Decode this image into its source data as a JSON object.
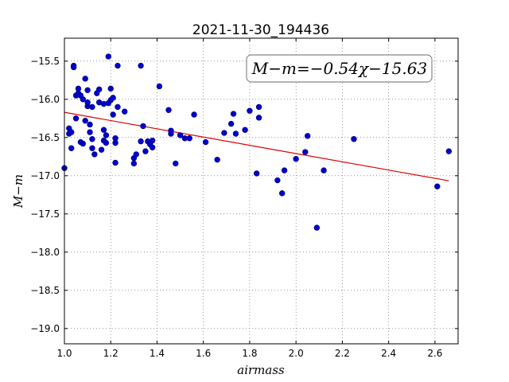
{
  "chart_data": {
    "type": "scatter",
    "title": "2021-11-30_194436",
    "xlabel": "airmass",
    "ylabel": "M−m",
    "xlim": [
      1.0,
      2.7
    ],
    "ylim": [
      -19.2,
      -15.2
    ],
    "y_inverted": true,
    "grid": true,
    "xticks": [
      1.0,
      1.2,
      1.4,
      1.6,
      1.8,
      2.0,
      2.2,
      2.4,
      2.6
    ],
    "xtick_labels": [
      "1.0",
      "1.2",
      "1.4",
      "1.6",
      "1.8",
      "2.0",
      "2.2",
      "2.4",
      "2.6"
    ],
    "yticks": [
      -15.5,
      -16.0,
      -16.5,
      -17.0,
      -17.5,
      -18.0,
      -18.5,
      -19.0
    ],
    "ytick_labels": [
      "−15.5",
      "−16.0",
      "−16.5",
      "−17.0",
      "−17.5",
      "−18.0",
      "−18.5",
      "−19.0"
    ],
    "annotation": "M−m=−0.54χ−15.63",
    "fit": {
      "slope": -0.54,
      "intercept": -15.63,
      "x_range": [
        1.0,
        2.66
      ]
    },
    "colors": {
      "points": "#0000cd",
      "fit": "#dd0000"
    },
    "points": [
      [
        1.0,
        -16.9
      ],
      [
        1.02,
        -16.38
      ],
      [
        1.02,
        -16.45
      ],
      [
        1.03,
        -16.64
      ],
      [
        1.03,
        -16.43
      ],
      [
        1.04,
        -15.56
      ],
      [
        1.04,
        -15.58
      ],
      [
        1.05,
        -16.25
      ],
      [
        1.05,
        -15.95
      ],
      [
        1.06,
        -15.92
      ],
      [
        1.06,
        -15.86
      ],
      [
        1.07,
        -15.95
      ],
      [
        1.07,
        -16.56
      ],
      [
        1.08,
        -16.58
      ],
      [
        1.08,
        -16.0
      ],
      [
        1.09,
        -16.28
      ],
      [
        1.09,
        -15.73
      ],
      [
        1.1,
        -16.09
      ],
      [
        1.1,
        -16.04
      ],
      [
        1.1,
        -15.88
      ],
      [
        1.11,
        -16.33
      ],
      [
        1.11,
        -16.43
      ],
      [
        1.12,
        -16.1
      ],
      [
        1.12,
        -16.64
      ],
      [
        1.12,
        -16.52
      ],
      [
        1.13,
        -16.72
      ],
      [
        1.14,
        -15.92
      ],
      [
        1.15,
        -16.04
      ],
      [
        1.15,
        -15.87
      ],
      [
        1.16,
        -16.66
      ],
      [
        1.17,
        -16.4
      ],
      [
        1.17,
        -16.06
      ],
      [
        1.17,
        -16.54
      ],
      [
        1.18,
        -16.57
      ],
      [
        1.18,
        -16.47
      ],
      [
        1.19,
        -16.05
      ],
      [
        1.19,
        -15.44
      ],
      [
        1.2,
        -16.01
      ],
      [
        1.2,
        -15.86
      ],
      [
        1.21,
        -16.2
      ],
      [
        1.21,
        -15.98
      ],
      [
        1.22,
        -16.51
      ],
      [
        1.22,
        -16.57
      ],
      [
        1.22,
        -16.83
      ],
      [
        1.23,
        -15.56
      ],
      [
        1.23,
        -16.1
      ],
      [
        1.26,
        -16.16
      ],
      [
        1.3,
        -16.77
      ],
      [
        1.3,
        -16.84
      ],
      [
        1.31,
        -16.72
      ],
      [
        1.33,
        -16.55
      ],
      [
        1.33,
        -15.56
      ],
      [
        1.34,
        -16.35
      ],
      [
        1.35,
        -16.68
      ],
      [
        1.36,
        -16.55
      ],
      [
        1.37,
        -16.59
      ],
      [
        1.38,
        -16.63
      ],
      [
        1.38,
        -16.54
      ],
      [
        1.41,
        -15.83
      ],
      [
        1.45,
        -16.14
      ],
      [
        1.46,
        -16.41
      ],
      [
        1.46,
        -16.45
      ],
      [
        1.48,
        -16.84
      ],
      [
        1.5,
        -16.47
      ],
      [
        1.52,
        -16.51
      ],
      [
        1.54,
        -16.51
      ],
      [
        1.56,
        -16.2
      ],
      [
        1.61,
        -16.56
      ],
      [
        1.66,
        -16.79
      ],
      [
        1.69,
        -16.44
      ],
      [
        1.72,
        -16.32
      ],
      [
        1.73,
        -16.19
      ],
      [
        1.74,
        -16.45
      ],
      [
        1.78,
        -16.4
      ],
      [
        1.8,
        -16.15
      ],
      [
        1.83,
        -16.97
      ],
      [
        1.84,
        -16.1
      ],
      [
        1.84,
        -16.24
      ],
      [
        1.92,
        -17.06
      ],
      [
        1.94,
        -17.23
      ],
      [
        1.95,
        -16.93
      ],
      [
        2.0,
        -16.78
      ],
      [
        2.04,
        -16.69
      ],
      [
        2.05,
        -16.48
      ],
      [
        2.09,
        -17.68
      ],
      [
        2.12,
        -16.93
      ],
      [
        2.25,
        -16.52
      ],
      [
        2.61,
        -17.14
      ],
      [
        2.66,
        -16.68
      ]
    ]
  }
}
